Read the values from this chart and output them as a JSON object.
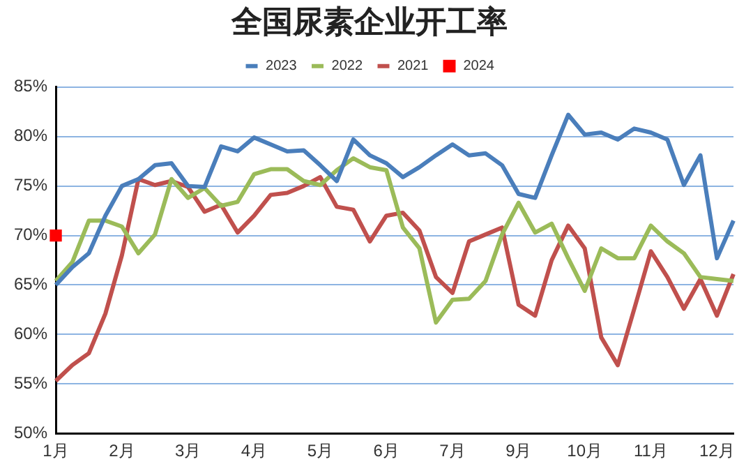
{
  "chart_data": {
    "type": "line",
    "title": "全国尿素企业开工率",
    "categories": [
      "1月",
      null,
      null,
      null,
      "2月",
      null,
      null,
      null,
      "3月",
      null,
      null,
      null,
      "4月",
      null,
      null,
      null,
      "5月",
      null,
      null,
      null,
      "6月",
      null,
      null,
      null,
      "7月",
      null,
      null,
      null,
      "9月",
      null,
      null,
      null,
      "10月",
      null,
      null,
      null,
      "11月",
      null,
      null,
      null,
      "12月",
      null
    ],
    "series": [
      {
        "name": "2023",
        "color": "#4a7ebb",
        "marker": "none",
        "values": [
          65,
          66.8,
          68.2,
          72,
          75,
          75.7,
          77.1,
          77.3,
          75,
          74.9,
          79,
          78.5,
          79.9,
          79.2,
          78.5,
          78.6,
          77.1,
          75.5,
          79.7,
          78.1,
          77.3,
          75.9,
          76.9,
          78.1,
          79.2,
          78.1,
          78.3,
          77.1,
          74.2,
          73.8,
          78.1,
          82.2,
          80.2,
          80.4,
          79.7,
          80.8,
          80.4,
          79.7,
          75.1,
          78.1,
          67.7,
          71.5
        ]
      },
      {
        "name": "2022",
        "color": "#9bbb59",
        "marker": "none",
        "values": [
          65.4,
          67.3,
          71.5,
          71.5,
          70.9,
          68.2,
          70.1,
          75.7,
          73.8,
          74.8,
          73,
          73.4,
          76.2,
          76.7,
          76.7,
          75.5,
          75.1,
          76.6,
          77.8,
          76.9,
          76.6,
          70.8,
          68.7,
          61.2,
          63.5,
          63.6,
          65.4,
          70.1,
          73.3,
          70.3,
          71.2,
          67.7,
          64.4,
          68.7,
          67.7,
          67.7,
          71,
          69.4,
          68.2,
          65.8,
          65.6,
          65.4
        ]
      },
      {
        "name": "2021",
        "color": "#c0504d",
        "marker": "none",
        "values": [
          55.3,
          56.9,
          58.1,
          62.1,
          68,
          75.7,
          75.1,
          75.5,
          74.9,
          72.4,
          73.1,
          70.3,
          72,
          74.1,
          74.3,
          75,
          75.9,
          72.9,
          72.6,
          69.4,
          72,
          72.3,
          70.5,
          65.8,
          64.2,
          69.4,
          70.1,
          70.8,
          63,
          61.9,
          67.5,
          71,
          68.7,
          59.7,
          56.9,
          62.6,
          68.4,
          65.8,
          62.6,
          65.6,
          61.9,
          66.1
        ]
      },
      {
        "name": "2024",
        "color": "#ff0000",
        "marker": "square",
        "values": [
          70,
          null,
          null,
          null,
          null,
          null,
          null,
          null,
          null,
          null,
          null,
          null,
          null,
          null,
          null,
          null,
          null,
          null,
          null,
          null,
          null,
          null,
          null,
          null,
          null,
          null,
          null,
          null,
          null,
          null,
          null,
          null,
          null,
          null,
          null,
          null,
          null,
          null,
          null,
          null,
          null,
          null
        ]
      }
    ],
    "ylim": [
      50,
      85
    ],
    "yticks": [
      {
        "value": 50,
        "label": "50%"
      },
      {
        "value": 55,
        "label": "55%"
      },
      {
        "value": 60,
        "label": "60%"
      },
      {
        "value": 65,
        "label": "65%"
      },
      {
        "value": 70,
        "label": "70%"
      },
      {
        "value": 75,
        "label": "75%"
      },
      {
        "value": 80,
        "label": "80%"
      },
      {
        "value": 85,
        "label": "85%"
      }
    ],
    "grid": "y",
    "legend": "top"
  }
}
